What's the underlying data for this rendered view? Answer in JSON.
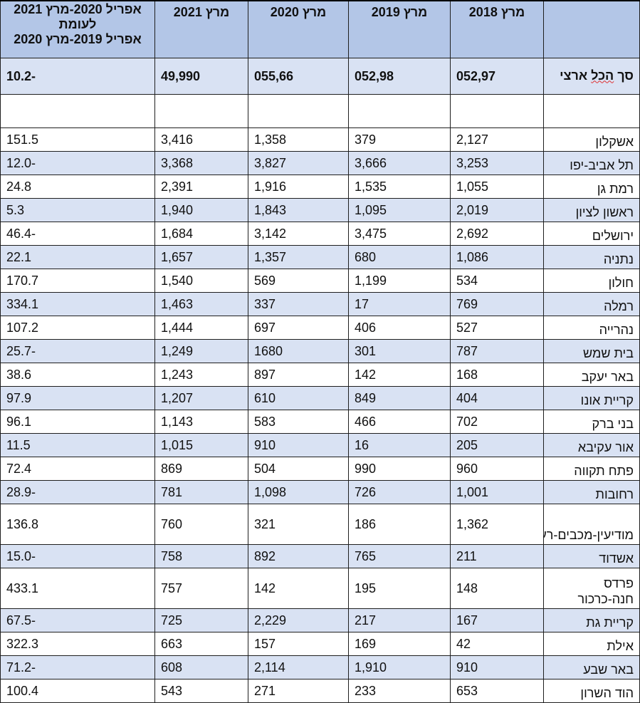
{
  "header": {
    "c0": "",
    "c1": "מרץ 2018",
    "c2": "מרץ 2019",
    "c3": "מרץ 2020",
    "c4": "מרץ 2021",
    "c5_line1": "אפריל 2020-מרץ 2021",
    "c5_line2": "לעומת",
    "c5_line3": "אפריל 2019-מרץ 2020"
  },
  "total": {
    "prefix": "סך ",
    "underlined": "הכל",
    "suffix": " ארצי",
    "v2018": "052,97",
    "v2019": "052,98",
    "v2020": "055,66",
    "v2021": "49,990",
    "pct": "-10.2"
  },
  "rows": [
    {
      "city": "אשקלון",
      "v2018": "2,127",
      "v2019": "379",
      "v2020": "1,358",
      "v2021": "3,416",
      "pct": "151.5"
    },
    {
      "city": "תל אביב-יפו",
      "v2018": "3,253",
      "v2019": "3,666",
      "v2020": "3,827",
      "v2021": "3,368",
      "pct": "-12.0"
    },
    {
      "city": "רמת גן",
      "v2018": "1,055",
      "v2019": "1,535",
      "v2020": "1,916",
      "v2021": "2,391",
      "pct": "24.8"
    },
    {
      "city": "ראשון לציון",
      "v2018": "2,019",
      "v2019": "1,095",
      "v2020": "1,843",
      "v2021": "1,940",
      "pct": "5.3"
    },
    {
      "city": "ירושלים",
      "v2018": "2,692",
      "v2019": "3,475",
      "v2020": "3,142",
      "v2021": "1,684",
      "pct": "-46.4"
    },
    {
      "city": "נתניה",
      "v2018": "1,086",
      "v2019": "680",
      "v2020": "1,357",
      "v2021": "1,657",
      "pct": "22.1"
    },
    {
      "city": "חולון",
      "v2018": "534",
      "v2019": "1,199",
      "v2020": "569",
      "v2021": "1,540",
      "pct": "170.7"
    },
    {
      "city": "רמלה",
      "v2018": "769",
      "v2019": "17",
      "v2020": "337",
      "v2021": "1,463",
      "pct": "334.1"
    },
    {
      "city": "נהרייה",
      "v2018": "527",
      "v2019": "406",
      "v2020": "697",
      "v2021": "1,444",
      "pct": "107.2"
    },
    {
      "city": "בית שמש",
      "v2018": "787",
      "v2019": "301",
      "v2020": "1680",
      "v2021": "1,249",
      "pct": "-25.7"
    },
    {
      "city": "באר יעקב",
      "v2018": "168",
      "v2019": "142",
      "v2020": "897",
      "v2021": "1,243",
      "pct": "38.6"
    },
    {
      "city": "קריית אונו",
      "v2018": "404",
      "v2019": "849",
      "v2020": "610",
      "v2021": "1,207",
      "pct": "97.9"
    },
    {
      "city": "בני ברק",
      "v2018": "702",
      "v2019": "466",
      "v2020": "583",
      "v2021": "1,143",
      "pct": "96.1"
    },
    {
      "city": "אור עקיבא",
      "v2018": "205",
      "v2019": "16",
      "v2020": "910",
      "v2021": "1,015",
      "pct": "11.5"
    },
    {
      "city": "פתח תקווה",
      "v2018": "960",
      "v2019": "990",
      "v2020": "504",
      "v2021": "869",
      "pct": "72.4"
    },
    {
      "city": "רחובות",
      "v2018": "1,001",
      "v2019": "726",
      "v2020": "1,098",
      "v2021": "781",
      "pct": "-28.9"
    },
    {
      "city": "מודיעין-מכבים-רעות",
      "v2018": "1,362",
      "v2019": "186",
      "v2020": "321",
      "v2021": "760",
      "pct": "136.8",
      "tall": true
    },
    {
      "city": "אשדוד",
      "v2018": "211",
      "v2019": "765",
      "v2020": "892",
      "v2021": "758",
      "pct": "-15.0"
    },
    {
      "city": "פרדס חנה-כרכור",
      "v2018": "148",
      "v2019": "195",
      "v2020": "142",
      "v2021": "757",
      "pct": "433.1",
      "tall": true
    },
    {
      "city": "קריית גת",
      "v2018": "167",
      "v2019": "217",
      "v2020": "2,229",
      "v2021": "725",
      "pct": "-67.5"
    },
    {
      "city": "אילת",
      "v2018": "42",
      "v2019": "169",
      "v2020": "157",
      "v2021": "663",
      "pct": "322.3"
    },
    {
      "city": "באר שבע",
      "v2018": "910",
      "v2019": "1,910",
      "v2020": "2,114",
      "v2021": "608",
      "pct": "-71.2"
    },
    {
      "city": "הוד השרון",
      "v2018": "653",
      "v2019": "233",
      "v2020": "271",
      "v2021": "543",
      "pct": "100.4"
    }
  ]
}
